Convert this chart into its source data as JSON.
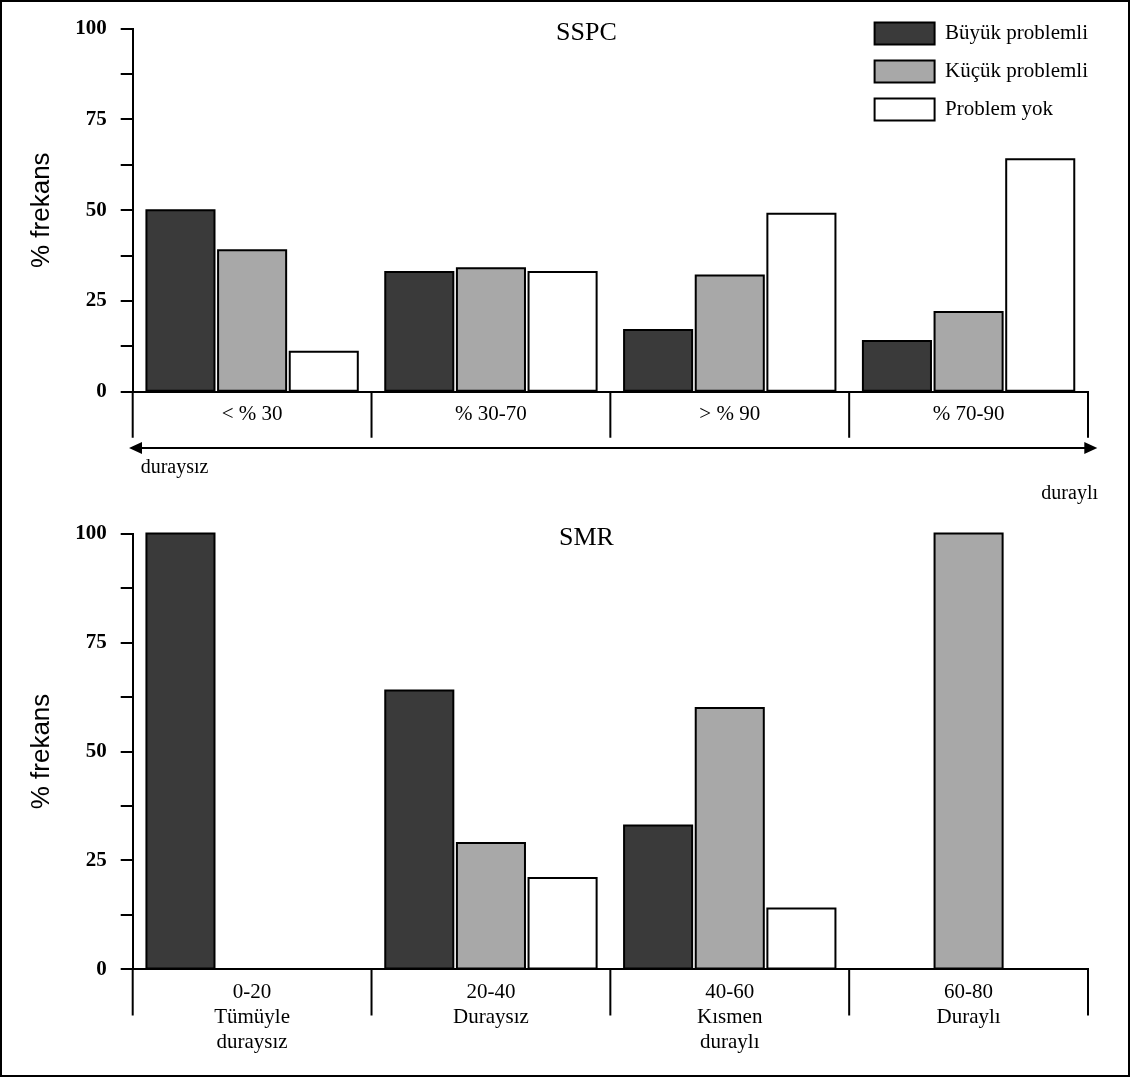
{
  "chart_data": [
    {
      "type": "bar",
      "title": "SSPC",
      "ylabel": "% frekans",
      "categories": [
        "< % 30",
        "% 30-70",
        "> % 90",
        "% 70-90"
      ],
      "series": [
        {
          "name": "Büyük problemli",
          "color": "#3a3a3a",
          "values": [
            50,
            33,
            17,
            14
          ]
        },
        {
          "name": "Küçük problemli",
          "color": "#a8a8a8",
          "values": [
            39,
            34,
            32,
            22
          ]
        },
        {
          "name": "Problem yok",
          "color": "#ffffff",
          "values": [
            11,
            33,
            49,
            64
          ]
        }
      ],
      "ylim": [
        0,
        100
      ],
      "yticks": [
        0,
        {
          "value": 12.5,
          "label": null
        },
        25,
        {
          "value": 37.5,
          "label": null
        },
        50,
        {
          "value": 62.5,
          "label": null
        },
        75,
        {
          "value": 87.5,
          "label": null
        },
        100
      ],
      "grid": false,
      "legend": "top right",
      "annotations": [
        "duraysız",
        "duraylı"
      ]
    },
    {
      "type": "bar",
      "title": "SMR",
      "ylabel": "% frekans",
      "categories": [
        "0-20\nTümüyle\nduraysız",
        "20-40\nDuraysız",
        "40-60\nKısmen\nduraylı",
        "60-80\nDuraylı"
      ],
      "series": [
        {
          "color": "#3a3a3a",
          "values": [
            100,
            64,
            33,
            0
          ]
        },
        {
          "color": "#a8a8a8",
          "values": [
            0,
            29,
            60,
            100
          ]
        },
        {
          "color": "#ffffff",
          "values": [
            0,
            21,
            14,
            0
          ]
        }
      ],
      "ylim": [
        0,
        100
      ],
      "yticks": [
        0,
        {
          "value": 12.5,
          "label": null
        },
        25,
        {
          "value": 37.5,
          "label": null
        },
        50,
        {
          "value": 62.5,
          "label": null
        },
        75,
        {
          "value": 87.5,
          "label": null
        },
        100
      ],
      "grid": false,
      "legend": false
    }
  ]
}
